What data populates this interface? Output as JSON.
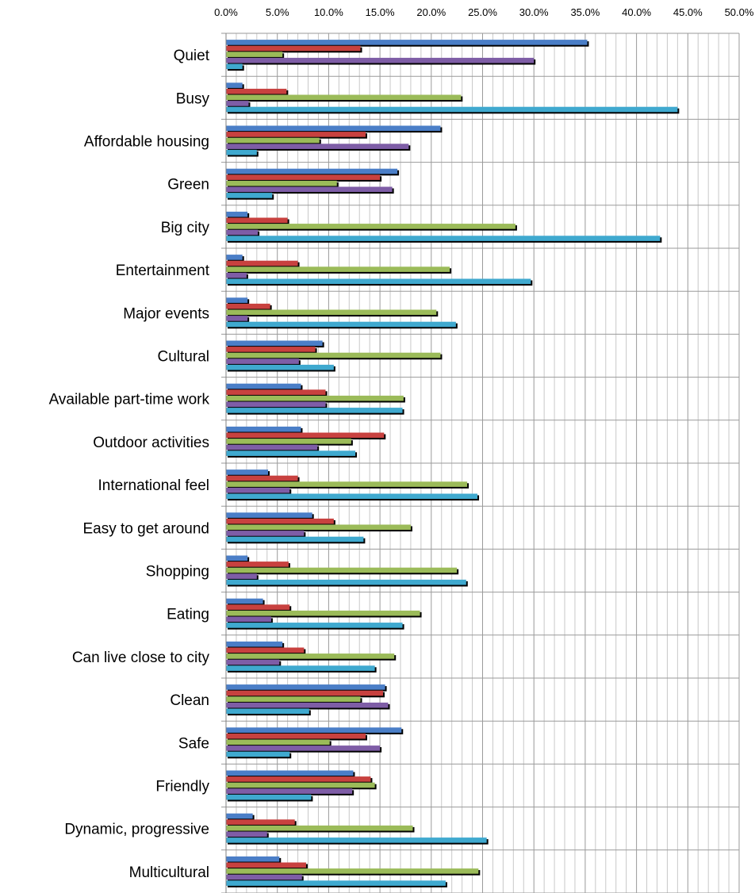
{
  "chart_data": {
    "type": "bar",
    "orientation": "horizontal",
    "title": "",
    "xlabel": "",
    "ylabel": "",
    "xlim": [
      0,
      50
    ],
    "x_ticks": [
      "0.0%",
      "5.0%",
      "10.0%",
      "15.0%",
      "20.0%",
      "25.0%",
      "30.0%",
      "35.0%",
      "40.0%",
      "45.0%",
      "50.0%"
    ],
    "grid": true,
    "legend": "none",
    "categories": [
      "Quiet",
      "Busy",
      "Affordable housing",
      "Green",
      "Big city",
      "Entertainment",
      "Major events",
      "Cultural",
      "Available part-time work",
      "Outdoor activities",
      "International feel",
      "Easy to get around",
      "Shopping",
      "Eating",
      "Can live close to city",
      "Clean",
      "Safe",
      "Friendly",
      "Dynamic, progressive",
      "Multicultural"
    ],
    "series": [
      {
        "color": "#4A7EC7",
        "values": [
          35.2,
          1.6,
          20.9,
          16.7,
          2.1,
          1.6,
          2.1,
          9.4,
          7.3,
          7.3,
          4.1,
          8.4,
          2.1,
          3.6,
          5.5,
          15.5,
          17.1,
          12.4,
          2.6,
          5.2
        ]
      },
      {
        "color": "#C8413F",
        "values": [
          13.1,
          5.9,
          13.6,
          15.0,
          6.0,
          7.0,
          4.3,
          8.7,
          9.7,
          15.4,
          7.0,
          10.5,
          6.1,
          6.2,
          7.6,
          15.3,
          13.6,
          14.1,
          6.7,
          7.8
        ]
      },
      {
        "color": "#9BBB59",
        "values": [
          5.5,
          22.9,
          9.1,
          10.8,
          28.2,
          21.8,
          20.5,
          20.9,
          17.3,
          12.2,
          23.5,
          18.0,
          22.5,
          18.9,
          16.4,
          13.1,
          10.1,
          14.5,
          18.2,
          24.6
        ]
      },
      {
        "color": "#7E5DA6",
        "values": [
          30.0,
          2.2,
          17.8,
          16.2,
          3.1,
          2.0,
          2.1,
          7.1,
          9.7,
          8.9,
          6.2,
          7.6,
          3.0,
          4.4,
          5.2,
          15.8,
          15.0,
          12.3,
          4.0,
          7.4
        ]
      },
      {
        "color": "#3FA9CF",
        "values": [
          1.6,
          44.0,
          3.0,
          4.5,
          42.3,
          29.7,
          22.4,
          10.5,
          17.2,
          12.6,
          24.5,
          13.4,
          23.4,
          17.2,
          14.5,
          8.1,
          6.2,
          8.3,
          25.4,
          21.4
        ]
      }
    ]
  }
}
